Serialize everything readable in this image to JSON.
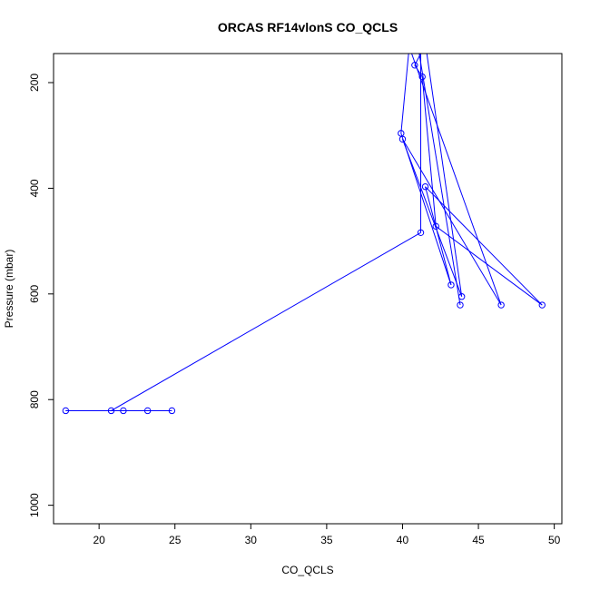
{
  "chart_data": {
    "type": "line",
    "title": "ORCAS RF14vlonS CO_QCLS",
    "xlabel": "CO_QCLS",
    "ylabel": "Pressure (mbar)",
    "xlim": [
      17,
      50.5
    ],
    "ylim": [
      1035,
      145
    ],
    "y_reversed": true,
    "x_ticks": [
      20,
      25,
      30,
      35,
      40,
      45,
      50
    ],
    "y_ticks": [
      200,
      400,
      600,
      800,
      1000
    ],
    "grid": false,
    "legend": "none",
    "series_color": "#0000ff",
    "series": [
      {
        "points": [
          {
            "x": 24.8,
            "y": 821
          },
          {
            "x": 17.8,
            "y": 821
          },
          {
            "x": 23.2,
            "y": 821
          },
          {
            "x": 21.6,
            "y": 821
          },
          {
            "x": 20.8,
            "y": 821
          },
          {
            "x": 41.2,
            "y": 484
          },
          {
            "x": 41.2,
            "y": 145
          },
          {
            "x": 40.8,
            "y": 167
          },
          {
            "x": 41.3,
            "y": 189
          },
          {
            "x": 42.2,
            "y": 472
          },
          {
            "x": 49.2,
            "y": 621
          },
          {
            "x": 41.5,
            "y": 397
          },
          {
            "x": 43.2,
            "y": 583
          },
          {
            "x": 39.9,
            "y": 296
          },
          {
            "x": 40.4,
            "y": 145
          },
          {
            "x": 41.6,
            "y": 145
          },
          {
            "x": 43.9,
            "y": 605
          },
          {
            "x": 40.0,
            "y": 307
          },
          {
            "x": 46.5,
            "y": 621
          },
          {
            "x": 40.6,
            "y": 145
          },
          {
            "x": 41.1,
            "y": 145
          },
          {
            "x": 43.8,
            "y": 621
          }
        ]
      }
    ]
  }
}
